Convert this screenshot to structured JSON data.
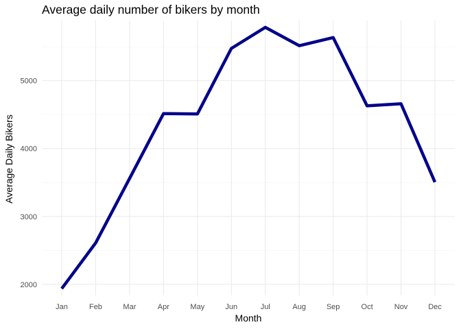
{
  "chart_data": {
    "type": "line",
    "title": "Average daily number of bikers by month",
    "xlabel": "Month",
    "ylabel": "Average Daily Bikers",
    "categories": [
      "Jan",
      "Feb",
      "Mar",
      "Apr",
      "May",
      "Jun",
      "Jul",
      "Aug",
      "Sep",
      "Oct",
      "Nov",
      "Dec"
    ],
    "series": [
      {
        "values": [
          1937,
          2610,
          3560,
          4515,
          4510,
          5475,
          5785,
          5515,
          5635,
          4630,
          4660,
          3505
        ]
      }
    ],
    "ylim": [
      1837,
      5885
    ],
    "yticks": [
      2000,
      3000,
      4000,
      5000
    ],
    "grid": true,
    "legend": "none",
    "line_color": "#00008B"
  }
}
